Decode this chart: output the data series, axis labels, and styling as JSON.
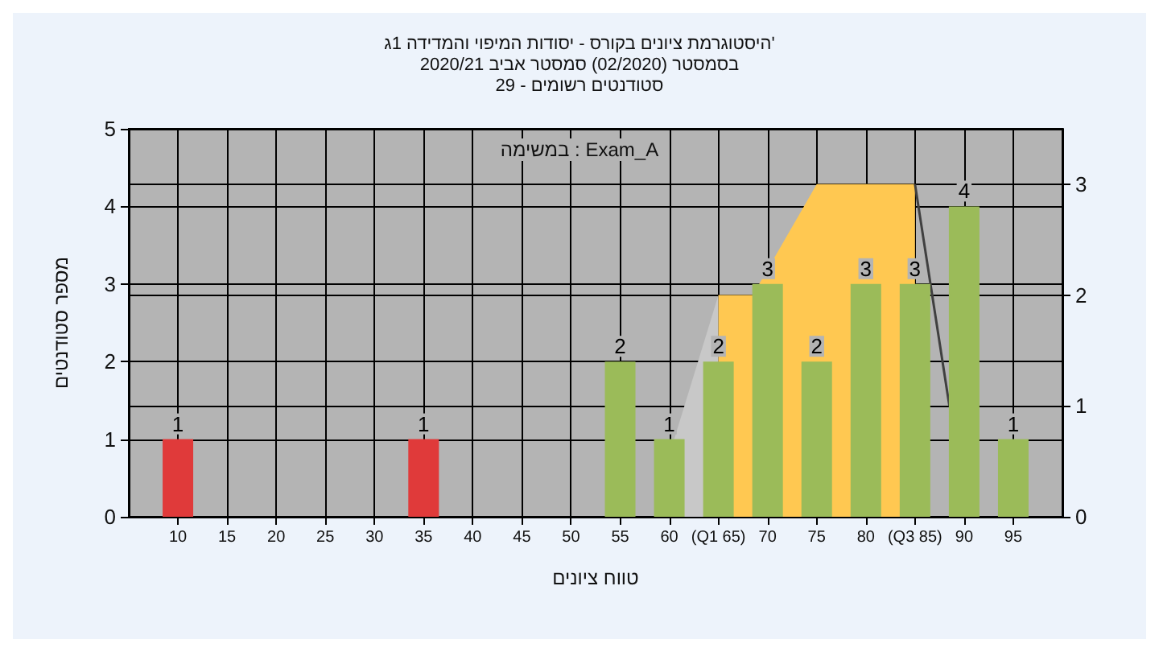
{
  "chart_data": {
    "type": "bar",
    "title": "היסטוגרמת ציונים בקורס - יסודות המיפוי והמדידה 1ג'",
    "subtitle": "בסמסטר (02/2020) סמסטר אביב 2020/21\nסטודנטים רשומים - 29",
    "xlabel": "טווח ציונים",
    "ylabel": "מספר סטודנטים",
    "annotations": [
      "במשימה : Exam_A"
    ],
    "series": [
      {
        "type": "area",
        "axis": "y2",
        "color": "#c8c8c8",
        "x": [
          60.5,
          65
        ],
        "values": [
          0.7,
          2
        ]
      },
      {
        "type": "area",
        "axis": "y2",
        "color": "#ffc851",
        "x": [
          65,
          65,
          68.5,
          75,
          85,
          85
        ],
        "values": [
          0,
          2,
          2,
          3,
          3,
          0
        ]
      },
      {
        "type": "line",
        "axis": "y2",
        "color": "#404040",
        "x": [
          85,
          88.5
        ],
        "values": [
          3,
          1
        ]
      },
      {
        "x": [
          10,
          35,
          55,
          60,
          65,
          70,
          75,
          80,
          85,
          90,
          95
        ],
        "values": [
          1,
          1,
          2,
          1,
          2,
          3,
          2,
          3,
          3,
          4,
          1
        ],
        "value_labels": [
          "1",
          "1",
          "2",
          "1",
          "2",
          "3",
          "2",
          "3",
          "3",
          "4",
          "1"
        ],
        "colors": [
          "#e03a3a",
          "#e03a3a",
          "#9bbb59",
          "#9bbb59",
          "#9bbb59",
          "#9bbb59",
          "#9bbb59",
          "#9bbb59",
          "#9bbb59",
          "#9bbb59",
          "#9bbb59"
        ]
      }
    ],
    "xlim": [
      5,
      100
    ],
    "xticks": [
      10,
      15,
      20,
      25,
      30,
      35,
      40,
      45,
      50,
      55,
      60,
      {
        "value": 65,
        "label": "(Q1 65)"
      },
      70,
      75,
      80,
      {
        "value": 85,
        "label": "(Q3 85)"
      },
      90,
      95
    ],
    "ylim": [
      0,
      5
    ],
    "yticks": [
      0,
      1,
      2,
      3,
      4,
      5
    ],
    "y2lim": [
      0,
      3.5
    ],
    "y2ticks": [
      0,
      1,
      2,
      3
    ],
    "grid": true
  }
}
